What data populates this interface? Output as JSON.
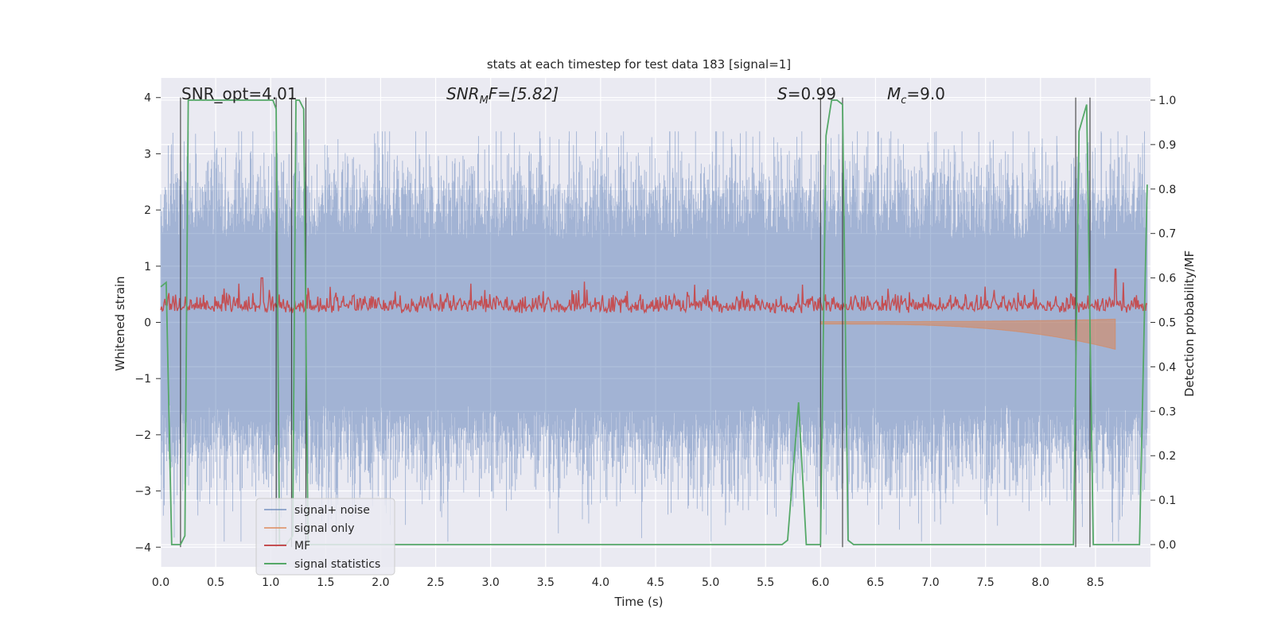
{
  "chart_data": {
    "type": "line",
    "title": "stats at each timestep for test data 183 [signal=1]",
    "xlabel": "Time (s)",
    "ylabel_left": "Whitened strain",
    "ylabel_right": "Detection probability/MF",
    "xlim": [
      0.0,
      9.0
    ],
    "ylim_left": [
      -4.35,
      4.35
    ],
    "ylim_right": [
      -0.05,
      1.05
    ],
    "xticks": [
      "0.0",
      "0.5",
      "1.0",
      "1.5",
      "2.0",
      "2.5",
      "3.0",
      "3.5",
      "4.0",
      "4.5",
      "5.0",
      "5.5",
      "6.0",
      "6.5",
      "7.0",
      "7.5",
      "8.0",
      "8.5"
    ],
    "yticks_left": [
      "4",
      "3",
      "2",
      "1",
      "0",
      "−1",
      "−2",
      "−3",
      "−4"
    ],
    "yticks_left_values": [
      4,
      3,
      2,
      1,
      0,
      -1,
      -2,
      -3,
      -4
    ],
    "yticks_right": [
      "1.0",
      "0.9",
      "0.8",
      "0.7",
      "0.6",
      "0.5",
      "0.4",
      "0.3",
      "0.2",
      "0.1",
      "0.0"
    ],
    "yticks_right_values": [
      1.0,
      0.9,
      0.8,
      0.7,
      0.6,
      0.5,
      0.4,
      0.3,
      0.2,
      0.1,
      0.0
    ],
    "annotations": {
      "snr_opt": "SNR_opt=4.01",
      "snr_mf_sym": "SNR",
      "snr_mf_sub": "M",
      "snr_mf_rest": "F=[5.82]",
      "s_sym": "S",
      "s_rest": "=0.99",
      "mc_sym": "M",
      "mc_sub": "c",
      "mc_rest": "=9.0"
    },
    "legend": {
      "position": "lower-left",
      "entries": [
        "signal+ noise",
        "signal only",
        "MF",
        "signal statistics"
      ]
    },
    "colors": {
      "axes_bg": "#eaeaf2",
      "grid": "#ffffff",
      "noise": "#4c72b0",
      "signal_only": "#dd8452",
      "mf": "#c44e52",
      "stat": "#55a868",
      "vline": "#333333"
    },
    "series": [
      {
        "name": "signal+ noise",
        "axis": "left",
        "description": "noisy whitened strain, amplitude roughly ±3.4"
      },
      {
        "name": "signal only",
        "axis": "left",
        "description": "chirp signal starting ~6.0 s, growing to about -0.5 at 8.68 s"
      },
      {
        "name": "MF",
        "axis": "right",
        "description": "matched filter output, ~0.5 to 0.6"
      },
      {
        "name": "signal statistics",
        "axis": "right",
        "x": [
          0.0,
          0.05,
          0.1,
          0.13,
          0.18,
          0.22,
          0.25,
          0.3,
          1.02,
          1.05,
          1.08,
          1.14,
          1.2,
          1.23,
          1.26,
          1.3,
          1.34,
          1.38,
          1.45,
          5.65,
          5.7,
          5.8,
          5.87,
          6.0,
          6.05,
          6.1,
          6.15,
          6.2,
          6.25,
          6.3,
          8.3,
          8.35,
          8.42,
          8.48,
          8.52,
          8.9,
          8.97
        ],
        "y": [
          0.58,
          0.59,
          0.0,
          0.0,
          0.0,
          0.02,
          1.0,
          1.0,
          1.0,
          0.98,
          0.0,
          0.0,
          0.02,
          1.0,
          1.0,
          0.98,
          0.0,
          0.0,
          0.0,
          0.0,
          0.01,
          0.32,
          0.0,
          0.0,
          0.92,
          1.0,
          1.0,
          0.99,
          0.01,
          0.0,
          0.0,
          0.93,
          0.99,
          0.0,
          0.0,
          0.0,
          0.81
        ]
      }
    ],
    "vertical_lines": [
      0.18,
      1.05,
      1.19,
      1.32,
      6.0,
      6.2,
      8.32,
      8.45
    ]
  }
}
